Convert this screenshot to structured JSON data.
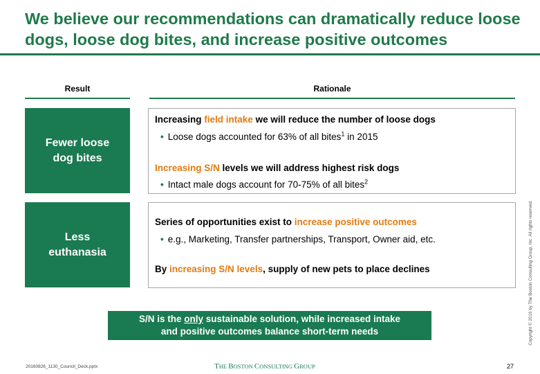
{
  "title": "We believe our recommendations can dramatically reduce loose dogs, loose dog bites, and increase positive outcomes",
  "headers": {
    "result": "Result",
    "rationale": "Rationale"
  },
  "rows": [
    {
      "result": "Fewer loose dog bites",
      "r1_pre": "Increasing ",
      "r1_hi": "field intake",
      "r1_post": " we will reduce the number of loose dogs",
      "b1_pre": "Loose dogs accounted for 63% of all bites",
      "b1_sup": "1",
      "b1_post": " in 2015",
      "r2_hi": "Increasing S/N",
      "r2_post": " levels we will address highest risk dogs",
      "b2_pre": "Intact male dogs account for 70-75% of all bites",
      "b2_sup": "2"
    },
    {
      "result": "Less euthanasia",
      "r1_pre": "Series of opportunities exist to ",
      "r1_hi": "increase positive outcomes",
      "b1": "e.g., Marketing, Transfer partnerships, Transport, Owner aid, etc.",
      "r2_pre": "By ",
      "r2_hi": "increasing S/N levels",
      "r2_post": ", supply of new pets to place declines"
    }
  ],
  "conclusion": {
    "pre": "S/N is the ",
    "underlined": "only",
    "post": " sustainable solution, while increased intake",
    "line2": "and positive outcomes balance short-term needs"
  },
  "footer": {
    "file": "20160826_1130_Council_Deck.pptx",
    "logo_the": "T",
    "logo_he": "HE ",
    "logo_b": "B",
    "logo_oston": "OSTON ",
    "logo_c": "C",
    "logo_onsulting": "ONSULTING ",
    "logo_g": "G",
    "logo_roup": "ROUP",
    "page": "27",
    "copyright": "Copyright © 2016 by The Boston Consulting Group, Inc. All rights reserved."
  },
  "colors": {
    "accent": "#1a7a52",
    "highlight": "#e07b12"
  }
}
